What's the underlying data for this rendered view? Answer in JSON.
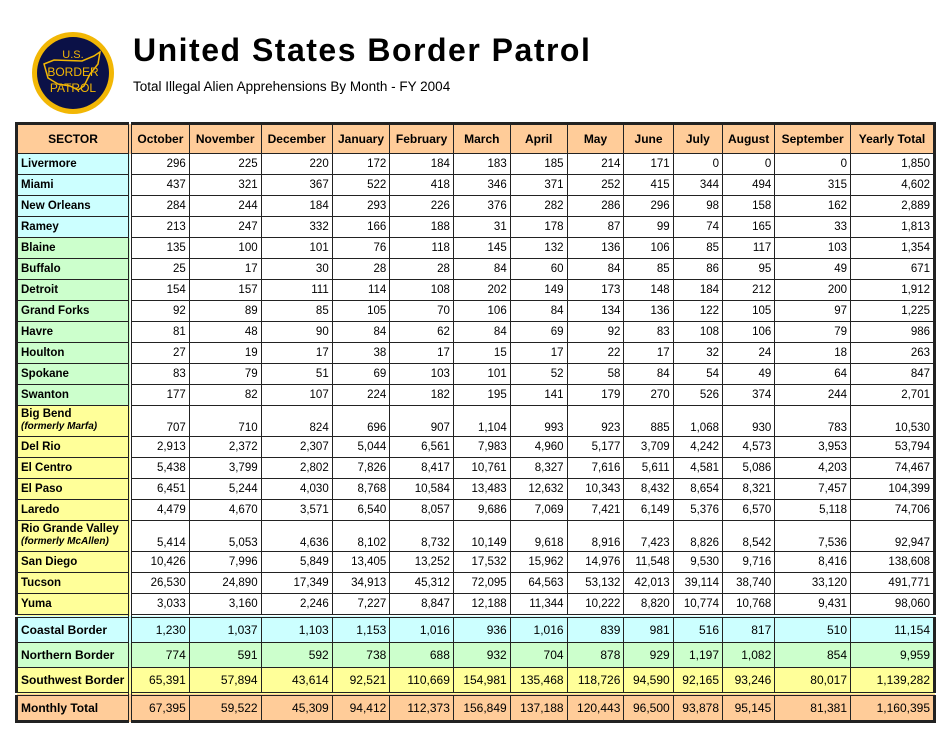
{
  "header": {
    "title": "United States Border Patrol",
    "subtitle": "Total Illegal Alien Apprehensions By Month - FY 2004",
    "logo_text": "U.S. BORDER PATROL"
  },
  "colors": {
    "header": "#ffcc99",
    "coastal": "#ccffff",
    "northern": "#ccffcc",
    "southwest": "#ffff99",
    "total": "#ffcc99"
  },
  "table": {
    "columns": [
      "SECTOR",
      "October",
      "November",
      "December",
      "January",
      "February",
      "March",
      "April",
      "May",
      "June",
      "July",
      "August",
      "September",
      "Yearly Total"
    ],
    "rows": [
      {
        "sector": "Livermore",
        "group": "cyan",
        "values": [
          "296",
          "225",
          "220",
          "172",
          "184",
          "183",
          "185",
          "214",
          "171",
          "0",
          "0",
          "0",
          "1,850"
        ]
      },
      {
        "sector": "Miami",
        "group": "cyan",
        "values": [
          "437",
          "321",
          "367",
          "522",
          "418",
          "346",
          "371",
          "252",
          "415",
          "344",
          "494",
          "315",
          "4,602"
        ]
      },
      {
        "sector": "New Orleans",
        "group": "cyan",
        "values": [
          "284",
          "244",
          "184",
          "293",
          "226",
          "376",
          "282",
          "286",
          "296",
          "98",
          "158",
          "162",
          "2,889"
        ]
      },
      {
        "sector": "Ramey",
        "group": "cyan",
        "values": [
          "213",
          "247",
          "332",
          "166",
          "188",
          "31",
          "178",
          "87",
          "99",
          "74",
          "165",
          "33",
          "1,813"
        ]
      },
      {
        "sector": "Blaine",
        "group": "green",
        "values": [
          "135",
          "100",
          "101",
          "76",
          "118",
          "145",
          "132",
          "136",
          "106",
          "85",
          "117",
          "103",
          "1,354"
        ]
      },
      {
        "sector": "Buffalo",
        "group": "green",
        "values": [
          "25",
          "17",
          "30",
          "28",
          "28",
          "84",
          "60",
          "84",
          "85",
          "86",
          "95",
          "49",
          "671"
        ]
      },
      {
        "sector": "Detroit",
        "group": "green",
        "values": [
          "154",
          "157",
          "111",
          "114",
          "108",
          "202",
          "149",
          "173",
          "148",
          "184",
          "212",
          "200",
          "1,912"
        ]
      },
      {
        "sector": "Grand Forks",
        "group": "green",
        "values": [
          "92",
          "89",
          "85",
          "105",
          "70",
          "106",
          "84",
          "134",
          "136",
          "122",
          "105",
          "97",
          "1,225"
        ]
      },
      {
        "sector": "Havre",
        "group": "green",
        "values": [
          "81",
          "48",
          "90",
          "84",
          "62",
          "84",
          "69",
          "92",
          "83",
          "108",
          "106",
          "79",
          "986"
        ]
      },
      {
        "sector": "Houlton",
        "group": "green",
        "values": [
          "27",
          "19",
          "17",
          "38",
          "17",
          "15",
          "17",
          "22",
          "17",
          "32",
          "24",
          "18",
          "263"
        ]
      },
      {
        "sector": "Spokane",
        "group": "green",
        "values": [
          "83",
          "79",
          "51",
          "69",
          "103",
          "101",
          "52",
          "58",
          "84",
          "54",
          "49",
          "64",
          "847"
        ]
      },
      {
        "sector": "Swanton",
        "group": "green",
        "values": [
          "177",
          "82",
          "107",
          "224",
          "182",
          "195",
          "141",
          "179",
          "270",
          "526",
          "374",
          "244",
          "2,701"
        ]
      },
      {
        "sector": "Big Bend",
        "note": "(formerly Marfa)",
        "group": "yellow",
        "values": [
          "707",
          "710",
          "824",
          "696",
          "907",
          "1,104",
          "993",
          "923",
          "885",
          "1,068",
          "930",
          "783",
          "10,530"
        ]
      },
      {
        "sector": "Del Rio",
        "group": "yellow",
        "values": [
          "2,913",
          "2,372",
          "2,307",
          "5,044",
          "6,561",
          "7,983",
          "4,960",
          "5,177",
          "3,709",
          "4,242",
          "4,573",
          "3,953",
          "53,794"
        ]
      },
      {
        "sector": "El Centro",
        "group": "yellow",
        "values": [
          "5,438",
          "3,799",
          "2,802",
          "7,826",
          "8,417",
          "10,761",
          "8,327",
          "7,616",
          "5,611",
          "4,581",
          "5,086",
          "4,203",
          "74,467"
        ]
      },
      {
        "sector": "El Paso",
        "group": "yellow",
        "values": [
          "6,451",
          "5,244",
          "4,030",
          "8,768",
          "10,584",
          "13,483",
          "12,632",
          "10,343",
          "8,432",
          "8,654",
          "8,321",
          "7,457",
          "104,399"
        ]
      },
      {
        "sector": "Laredo",
        "group": "yellow",
        "values": [
          "4,479",
          "4,670",
          "3,571",
          "6,540",
          "8,057",
          "9,686",
          "7,069",
          "7,421",
          "6,149",
          "5,376",
          "6,570",
          "5,118",
          "74,706"
        ]
      },
      {
        "sector": "Rio Grande Valley",
        "note": "(formerly McAllen)",
        "group": "yellow",
        "values": [
          "5,414",
          "5,053",
          "4,636",
          "8,102",
          "8,732",
          "10,149",
          "9,618",
          "8,916",
          "7,423",
          "8,826",
          "8,542",
          "7,536",
          "92,947"
        ]
      },
      {
        "sector": "San Diego",
        "group": "yellow",
        "values": [
          "10,426",
          "7,996",
          "5,849",
          "13,405",
          "13,252",
          "17,532",
          "15,962",
          "14,976",
          "11,548",
          "9,530",
          "9,716",
          "8,416",
          "138,608"
        ]
      },
      {
        "sector": "Tucson",
        "group": "yellow",
        "values": [
          "26,530",
          "24,890",
          "17,349",
          "34,913",
          "45,312",
          "72,095",
          "64,563",
          "53,132",
          "42,013",
          "39,114",
          "38,740",
          "33,120",
          "491,771"
        ]
      },
      {
        "sector": "Yuma",
        "group": "yellow",
        "values": [
          "3,033",
          "3,160",
          "2,246",
          "7,227",
          "8,847",
          "12,188",
          "11,344",
          "10,222",
          "8,820",
          "10,774",
          "10,768",
          "9,431",
          "98,060"
        ]
      }
    ],
    "summary": [
      {
        "sector": "Coastal Border",
        "group": "cyan",
        "values": [
          "1,230",
          "1,037",
          "1,103",
          "1,153",
          "1,016",
          "936",
          "1,016",
          "839",
          "981",
          "516",
          "817",
          "510",
          "11,154"
        ]
      },
      {
        "sector": "Northern Border",
        "group": "green",
        "values": [
          "774",
          "591",
          "592",
          "738",
          "688",
          "932",
          "704",
          "878",
          "929",
          "1,197",
          "1,082",
          "854",
          "9,959"
        ]
      },
      {
        "sector": "Southwest Border",
        "group": "yellow",
        "values": [
          "65,391",
          "57,894",
          "43,614",
          "92,521",
          "110,669",
          "154,981",
          "135,468",
          "118,726",
          "94,590",
          "92,165",
          "93,246",
          "80,017",
          "1,139,282"
        ]
      },
      {
        "sector": "Monthly Total",
        "group": "orange",
        "values": [
          "67,395",
          "59,522",
          "45,309",
          "94,412",
          "112,373",
          "156,849",
          "137,188",
          "120,443",
          "96,500",
          "93,878",
          "95,145",
          "81,381",
          "1,160,395"
        ]
      }
    ]
  }
}
